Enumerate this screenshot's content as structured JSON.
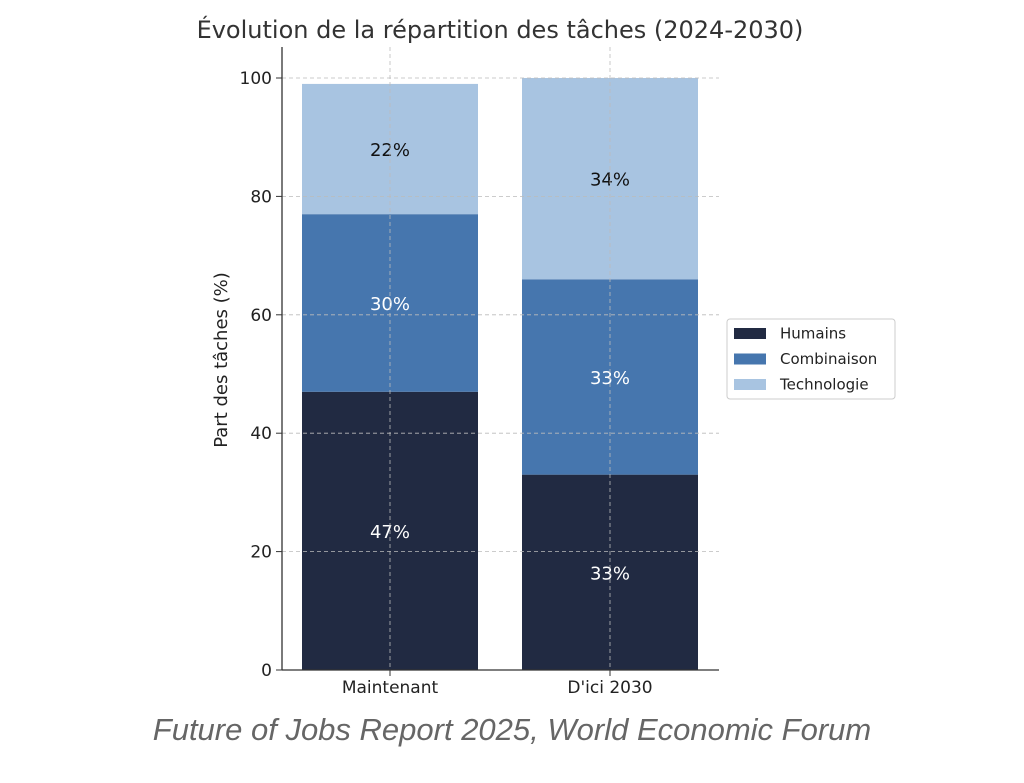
{
  "chart_data": {
    "type": "bar",
    "stacked": true,
    "title": "Évolution de la répartition des tâches (2024-2030)",
    "xlabel": "",
    "ylabel": "Part des tâches (%)",
    "ylim": [
      0,
      100
    ],
    "yticks": [
      0,
      20,
      40,
      60,
      80,
      100
    ],
    "categories": [
      "Maintenant",
      "D'ici 2030"
    ],
    "series": [
      {
        "name": "Humains",
        "values": [
          47,
          33
        ],
        "labels": [
          "47%",
          "33%"
        ],
        "color": "#212a42",
        "label_color": "#ffffff"
      },
      {
        "name": "Combinaison",
        "values": [
          30,
          33
        ],
        "labels": [
          "30%",
          "33%"
        ],
        "color": "#4676ae",
        "label_color": "#ffffff"
      },
      {
        "name": "Technologie",
        "values": [
          22,
          34
        ],
        "labels": [
          "22%",
          "34%"
        ],
        "color": "#a8c4e1",
        "label_color": "#111111"
      }
    ],
    "grid": true,
    "legend": "right"
  },
  "caption": "Future of Jobs Report 2025, World Economic Forum"
}
